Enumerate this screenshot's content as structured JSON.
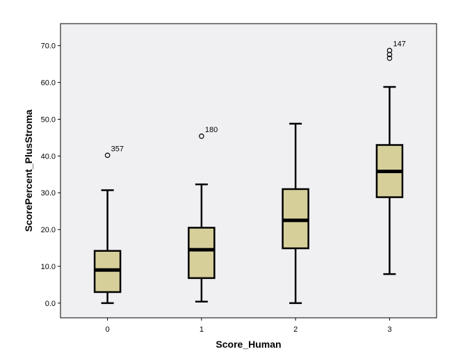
{
  "chart_data": {
    "type": "boxplot",
    "xlabel": "Score_Human",
    "ylabel": "ScorePercent_PlusStroma",
    "ylim": [
      -4,
      76
    ],
    "yticks": [
      0,
      10,
      20,
      30,
      40,
      50,
      60,
      70
    ],
    "ytick_labels": [
      "0.0",
      "10.0",
      "20.0",
      "30.0",
      "40.0",
      "50.0",
      "60.0",
      "70.0"
    ],
    "categories": [
      "0",
      "1",
      "2",
      "3"
    ],
    "boxes": [
      {
        "category": "0",
        "whisker_low": 0.0,
        "q1": 3.0,
        "median": 9.0,
        "q3": 14.2,
        "whisker_high": 30.7,
        "outliers": [
          {
            "value": 40.2,
            "label": "357"
          }
        ]
      },
      {
        "category": "1",
        "whisker_low": 0.4,
        "q1": 6.8,
        "median": 14.5,
        "q3": 20.5,
        "whisker_high": 32.3,
        "outliers": [
          {
            "value": 45.4,
            "label": "180"
          }
        ]
      },
      {
        "category": "2",
        "whisker_low": 0.0,
        "q1": 14.9,
        "median": 22.5,
        "q3": 31.0,
        "whisker_high": 48.8,
        "outliers": []
      },
      {
        "category": "3",
        "whisker_low": 7.9,
        "q1": 28.8,
        "median": 35.8,
        "q3": 43.0,
        "whisker_high": 58.8,
        "outliers": [
          {
            "value": 66.6,
            "label": ""
          },
          {
            "value": 67.6,
            "label": ""
          },
          {
            "value": 68.7,
            "label": "147"
          }
        ]
      }
    ],
    "colors": {
      "box_fill": "#d6cf9a",
      "plot_background": "#f0eff2",
      "stroke": "#000000"
    },
    "grid": false,
    "legend": "none"
  }
}
